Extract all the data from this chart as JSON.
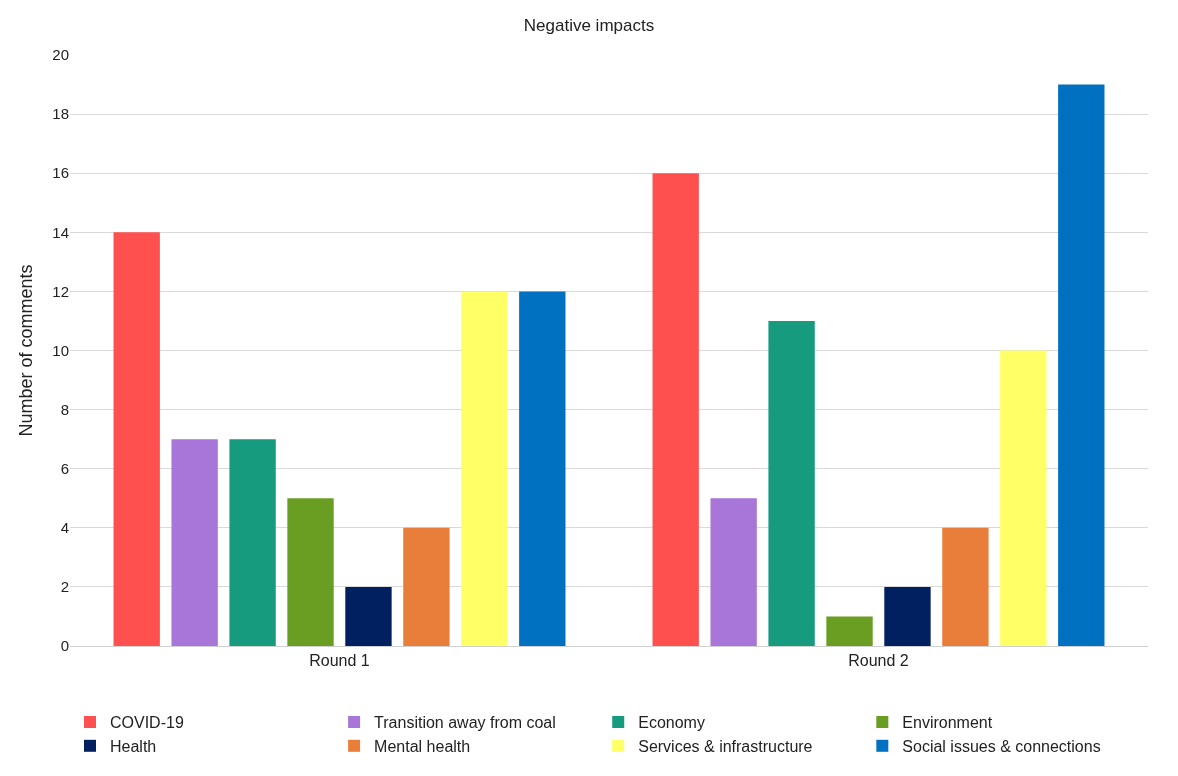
{
  "chart_data": {
    "type": "bar",
    "title": "Negative impacts",
    "ylabel": "Number of comments",
    "categories": [
      "Round 1",
      "Round 2"
    ],
    "series": [
      {
        "name": "COVID-19",
        "color": "#ff5050",
        "values": [
          14,
          16
        ]
      },
      {
        "name": "Transition away from coal",
        "color": "#a875d8",
        "values": [
          7,
          5
        ]
      },
      {
        "name": "Economy",
        "color": "#169b7e",
        "values": [
          7,
          11
        ]
      },
      {
        "name": "Environment",
        "color": "#6a9e22",
        "values": [
          5,
          1
        ]
      },
      {
        "name": "Health",
        "color": "#002060",
        "values": [
          2,
          2
        ]
      },
      {
        "name": "Mental health",
        "color": "#e97e3a",
        "values": [
          4,
          4
        ]
      },
      {
        "name": "Services & infrastructure",
        "color": "#ffff66",
        "values": [
          12,
          10
        ]
      },
      {
        "name": "Social issues & connections",
        "color": "#0070c0",
        "values": [
          12,
          19
        ]
      }
    ],
    "ylim": [
      0,
      20
    ],
    "yticks": [
      0,
      2,
      4,
      6,
      8,
      10,
      12,
      14,
      16,
      18,
      20
    ],
    "grid": "y",
    "legend": "bottom"
  }
}
